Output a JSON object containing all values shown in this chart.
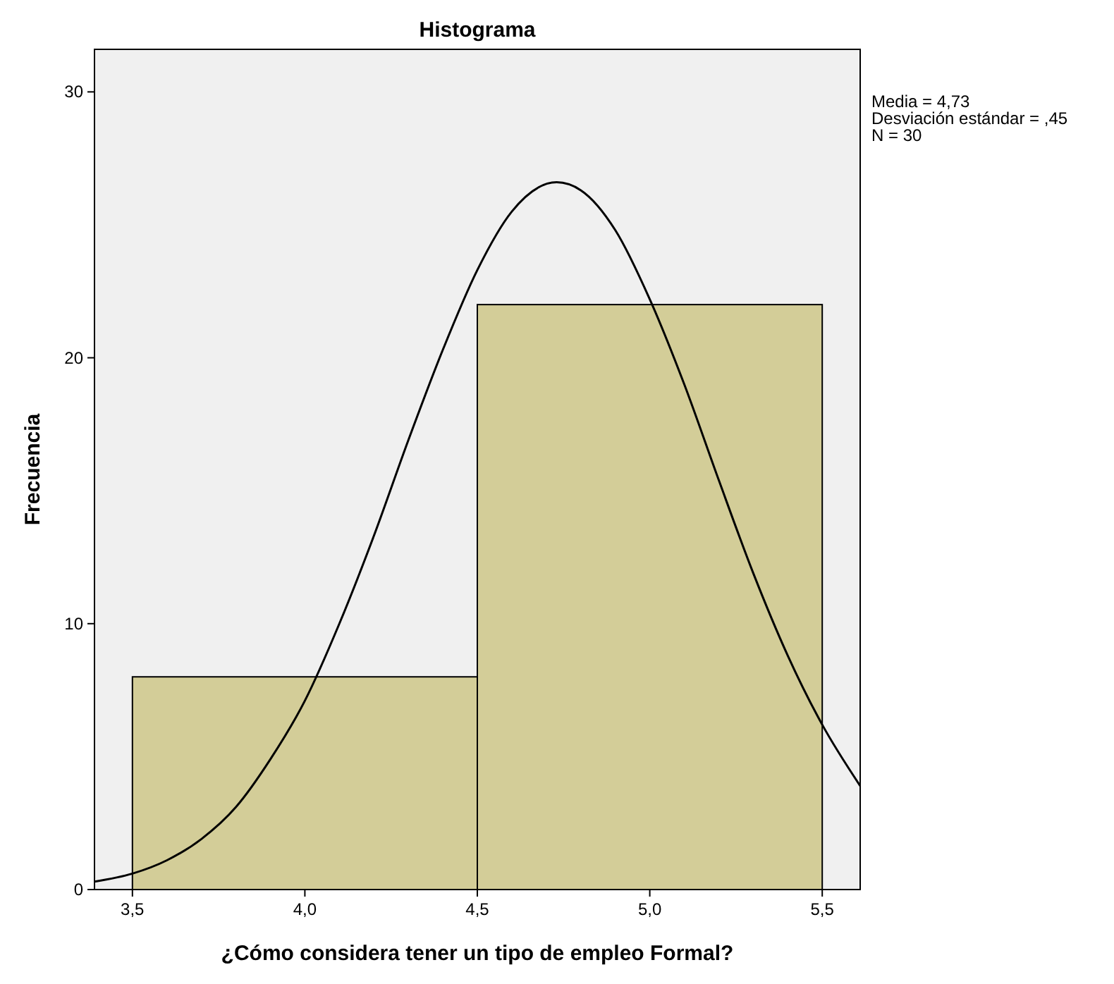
{
  "chart_data": {
    "type": "histogram",
    "title": "Histograma",
    "xlabel": "¿Cómo considera tener un tipo de empleo Formal?",
    "ylabel": "Frecuencia",
    "bins": [
      3.5,
      4.5,
      5.5
    ],
    "series": [
      {
        "color": "#d3cd98",
        "values": [
          8,
          22
        ]
      },
      {
        "type": "line",
        "color": "#000000",
        "x": [
          3.39,
          3.5,
          3.6,
          3.7,
          3.8,
          3.9,
          4.0,
          4.1,
          4.2,
          4.3,
          4.4,
          4.5,
          4.6,
          4.73,
          4.8,
          4.9,
          5.0,
          5.1,
          5.2,
          5.3,
          5.4,
          5.5,
          5.61
        ],
        "values": [
          0.3,
          0.6,
          1.1,
          1.9,
          3.1,
          4.9,
          7.1,
          10.0,
          13.3,
          16.9,
          20.3,
          23.3,
          25.5,
          26.6,
          26.3,
          24.8,
          22.2,
          19.0,
          15.4,
          11.9,
          8.8,
          6.2,
          3.9
        ]
      }
    ],
    "xlim": [
      3.39,
      5.61
    ],
    "ylim": [
      0,
      31.6
    ],
    "xticks": [
      {
        "value": 3.5,
        "label": "3,5"
      },
      {
        "value": 4.0,
        "label": "4,0"
      },
      {
        "value": 4.5,
        "label": "4,5"
      },
      {
        "value": 5.0,
        "label": "5,0"
      },
      {
        "value": 5.5,
        "label": "5,5"
      }
    ],
    "yticks": [
      0,
      10,
      20,
      30
    ],
    "grid": false,
    "annotations": [
      "Media = 4,73",
      "Desviación estándar = ,45",
      "N = 30"
    ]
  }
}
